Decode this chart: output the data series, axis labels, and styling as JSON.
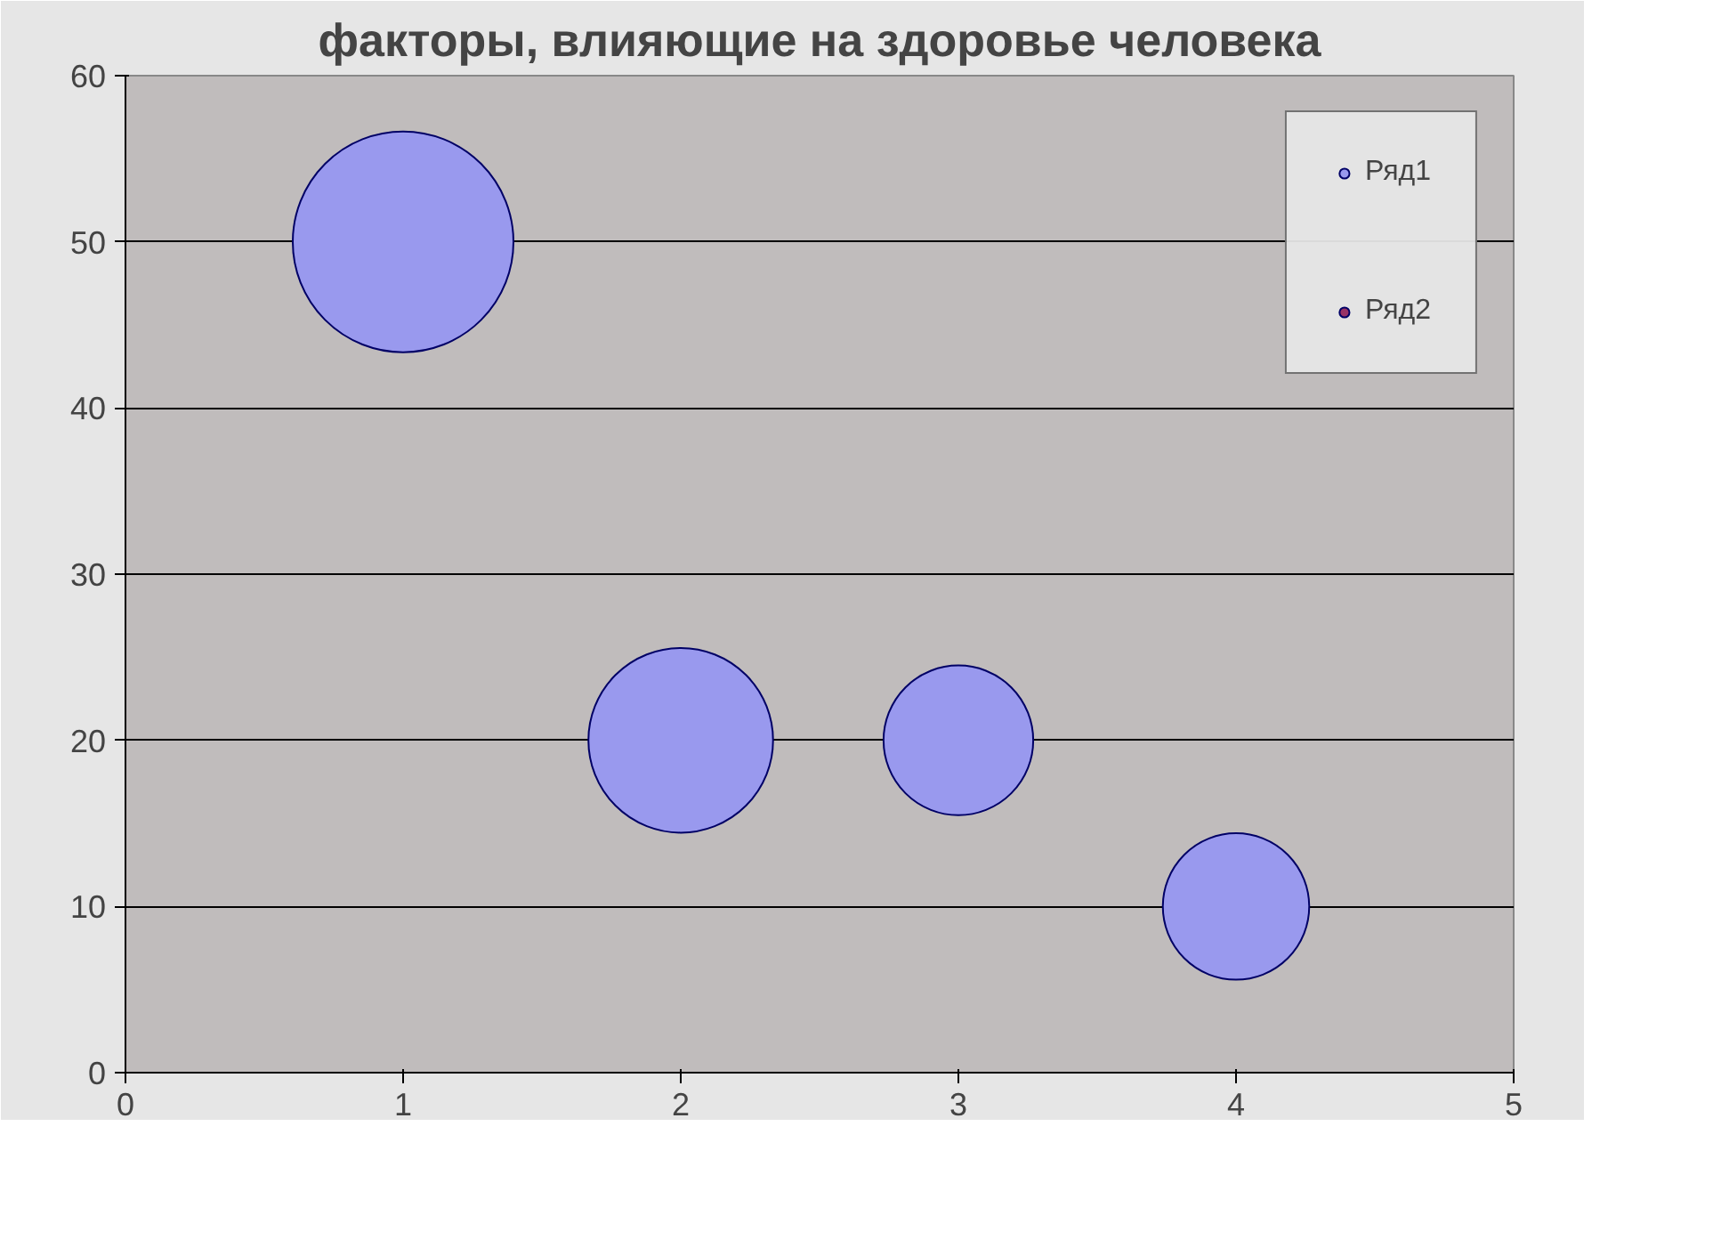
{
  "chart_data": {
    "type": "bubble",
    "title": "факторы, влияющие на здоровье человека",
    "x": [
      1,
      2,
      3,
      4
    ],
    "series": [
      {
        "name": "Ряд1",
        "color": "#9999ee",
        "values": [
          50,
          20,
          20,
          10
        ],
        "sizes": [
          1,
          0.7,
          0.46,
          0.44
        ]
      },
      {
        "name": "Ряд2",
        "color": "#993366",
        "values": [
          null,
          null,
          null,
          null
        ],
        "sizes": [
          null,
          null,
          null,
          null
        ]
      }
    ],
    "xlim": [
      0,
      5
    ],
    "xticks": [
      0,
      1,
      2,
      3,
      4,
      5
    ],
    "ylim": [
      0,
      60
    ],
    "yticks": [
      0,
      10,
      20,
      30,
      40,
      50,
      60
    ],
    "grid": "y",
    "legend": "top right"
  }
}
